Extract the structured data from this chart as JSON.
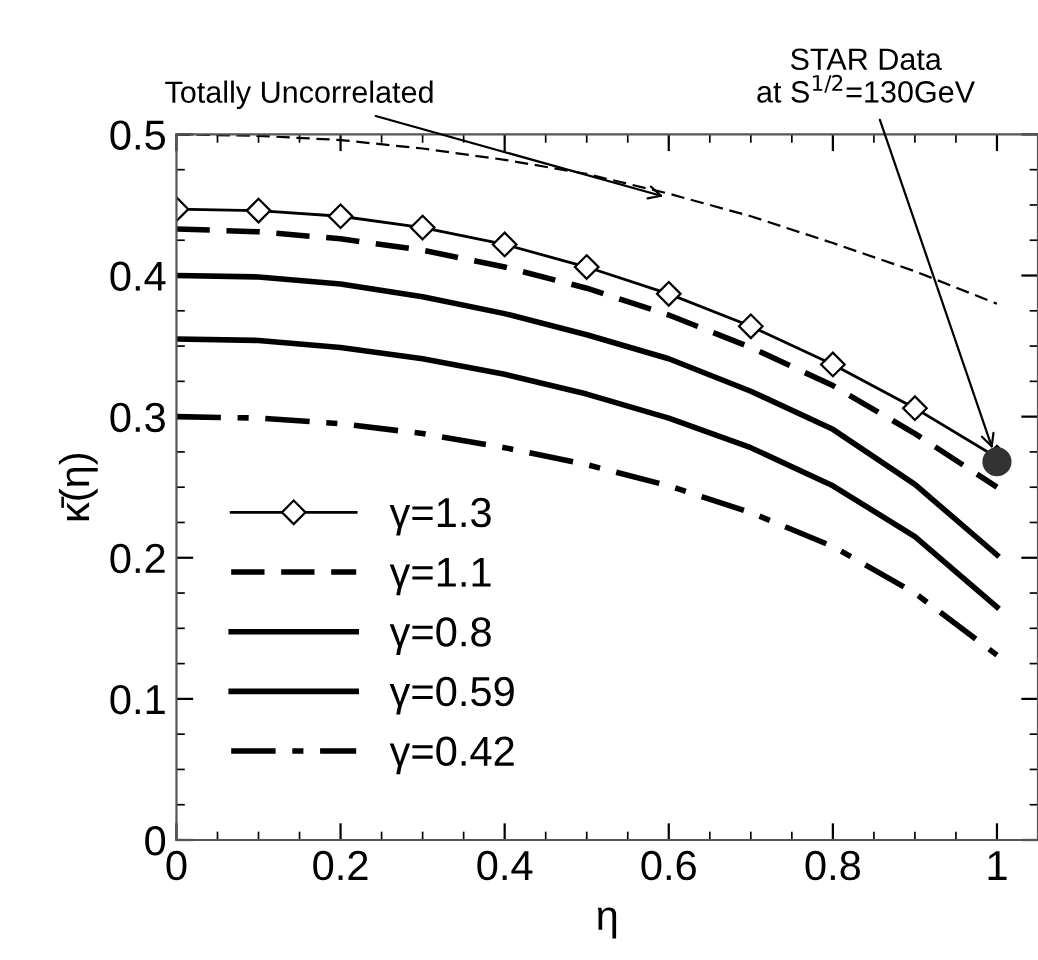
{
  "chart_data": {
    "type": "line",
    "xlabel": "η",
    "ylabel": "κ̄(η)",
    "x": [
      0,
      0.1,
      0.2,
      0.3,
      0.4,
      0.5,
      0.6,
      0.7,
      0.8,
      0.9,
      1.0
    ],
    "series": [
      {
        "name": "γ=1.3",
        "color": "#000000",
        "marker": "diamond",
        "line_style": "solid",
        "values": [
          0.447,
          0.446,
          0.442,
          0.434,
          0.422,
          0.406,
          0.387,
          0.364,
          0.337,
          0.306,
          0.271
        ]
      },
      {
        "name": "γ=1.1",
        "color": "#000000",
        "marker": "none",
        "line_style": "dashed",
        "values": [
          0.433,
          0.431,
          0.426,
          0.418,
          0.406,
          0.391,
          0.372,
          0.349,
          0.322,
          0.288,
          0.25
        ]
      },
      {
        "name": "γ=0.8",
        "color": "#000000",
        "marker": "none",
        "line_style": "solid",
        "values": [
          0.4,
          0.399,
          0.394,
          0.385,
          0.373,
          0.358,
          0.341,
          0.318,
          0.291,
          0.252,
          0.202
        ]
      },
      {
        "name": "γ=0.59",
        "color": "#000000",
        "marker": "none",
        "line_style": "solid",
        "values": [
          0.355,
          0.354,
          0.349,
          0.341,
          0.33,
          0.316,
          0.299,
          0.278,
          0.251,
          0.215,
          0.165
        ]
      },
      {
        "name": "γ=0.42",
        "color": "#000000",
        "marker": "none",
        "line_style": "dashdot",
        "values": [
          0.3,
          0.299,
          0.295,
          0.288,
          0.278,
          0.266,
          0.251,
          0.232,
          0.208,
          0.175,
          0.131
        ]
      },
      {
        "color": "#000000",
        "marker": "none",
        "line_style": "dashed",
        "values": [
          0.5,
          0.499,
          0.496,
          0.49,
          0.482,
          0.472,
          0.458,
          0.442,
          0.423,
          0.403,
          0.38
        ]
      },
      {
        "type": "scatter",
        "color": "#333333",
        "marker": "circle",
        "x": [
          1.0
        ],
        "values": [
          0.268
        ]
      }
    ],
    "annotations": [
      {
        "text": "Totally Uncorrelated",
        "x": 0.6,
        "y": 0.455
      },
      {
        "text": "STAR Data\nat S$^{1/2}$=130GeV",
        "x": 1.0,
        "y": 0.268
      }
    ],
    "xlim": [
      0,
      1.05
    ],
    "ylim": [
      0,
      0.5
    ],
    "xticks": [
      0,
      0.2,
      0.4,
      0.6,
      0.8,
      1
    ],
    "yticks": [
      0,
      0.1,
      0.2,
      0.3,
      0.4,
      0.5
    ],
    "grid": false,
    "legend": "bottom left"
  }
}
